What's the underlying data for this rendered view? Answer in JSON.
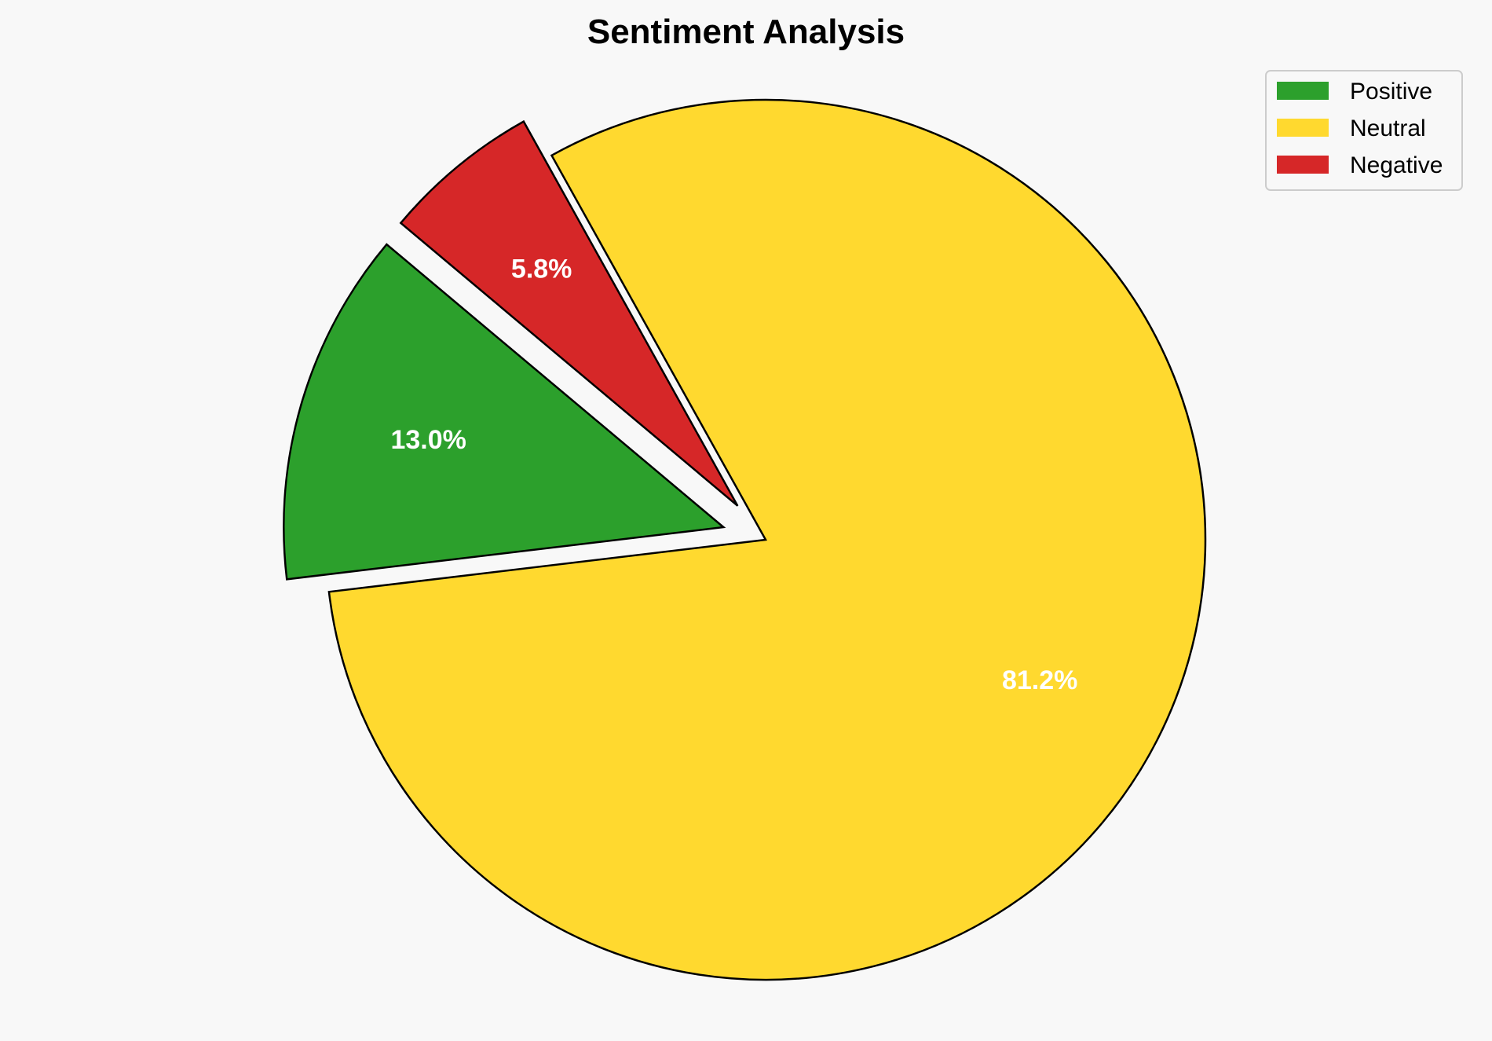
{
  "chart_data": {
    "type": "pie",
    "title": "Sentiment Analysis",
    "categories": [
      "Positive",
      "Neutral",
      "Negative"
    ],
    "values": [
      13.0,
      81.2,
      5.8
    ],
    "labels": [
      "13.0%",
      "81.2%",
      "5.8%"
    ],
    "colors": [
      "#2ca02c",
      "#ffd92f",
      "#d62728"
    ],
    "explode": [
      0.1,
      0,
      0.1
    ],
    "start_angle": 140,
    "direction": "counterclockwise",
    "legend": "top-right",
    "edge_color": "#000000"
  }
}
